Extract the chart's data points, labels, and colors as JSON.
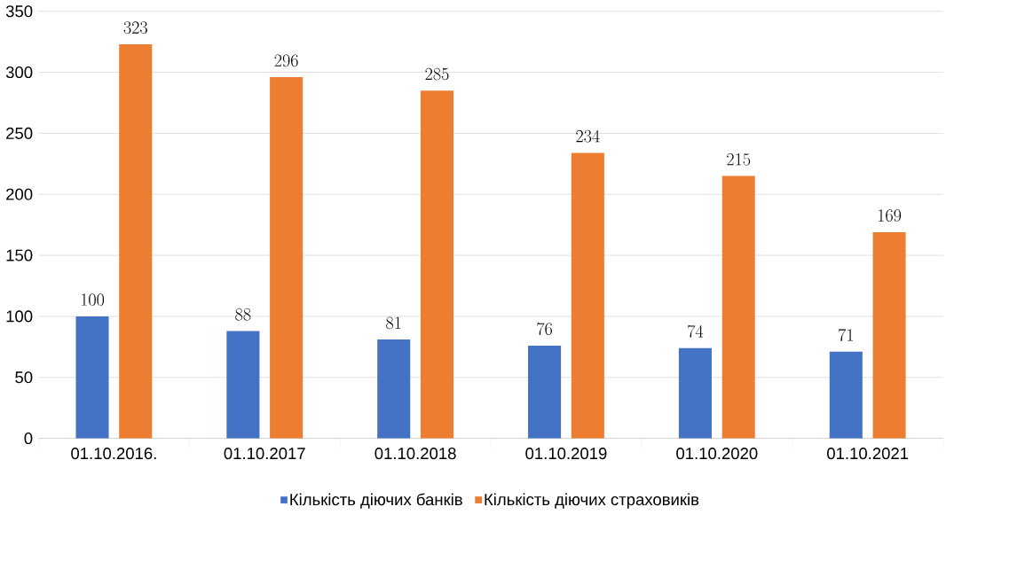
{
  "chart_data": {
    "type": "bar",
    "categories": [
      "01.10.2016.",
      "01.10.2017",
      "01.10.2018",
      "01.10.2019",
      "01.10.2020",
      "01.10.2021"
    ],
    "series": [
      {
        "name": "Кількість діючих банків",
        "color": "#4472c4",
        "values": [
          100,
          88,
          81,
          76,
          74,
          71
        ]
      },
      {
        "name": "Кількість діючих страховиків",
        "color": "#ed7d31",
        "values": [
          323,
          296,
          285,
          234,
          215,
          169
        ]
      }
    ],
    "ylim": [
      0,
      350
    ],
    "yticks": [
      0,
      50,
      100,
      150,
      200,
      250,
      300,
      350
    ],
    "grid": "y",
    "legend": "bottom",
    "data_labels": true
  }
}
